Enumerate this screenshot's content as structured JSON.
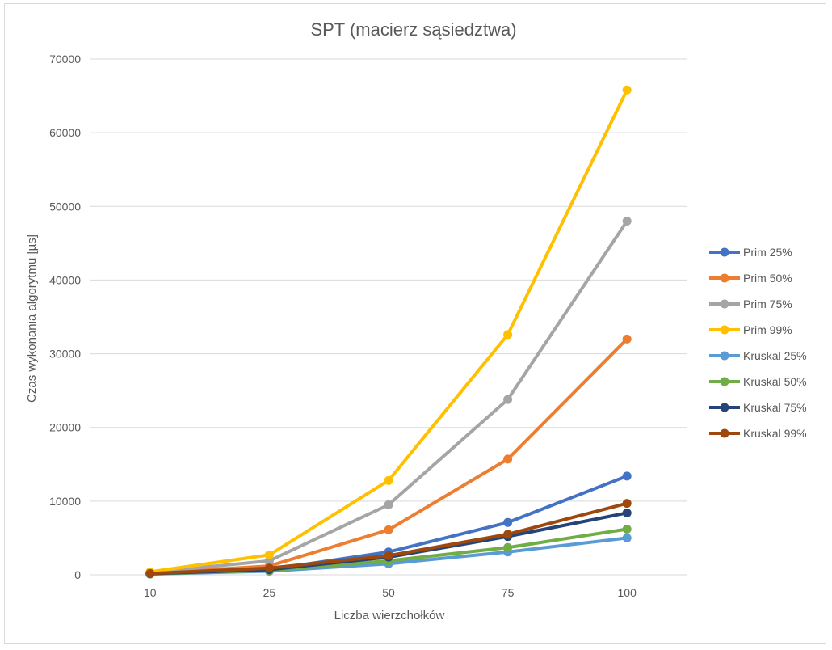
{
  "chart_data": {
    "type": "line",
    "title": "SPT (macierz sąsiedztwa)",
    "xlabel": "Liczba wierzchołków",
    "ylabel": "Czas wykonania algorytmu [µs]",
    "categories": [
      "10",
      "25",
      "50",
      "75",
      "100"
    ],
    "ylim": [
      0,
      70000
    ],
    "yticks": [
      0,
      10000,
      20000,
      30000,
      40000,
      50000,
      60000,
      70000
    ],
    "grid": true,
    "legend_position": "right",
    "series": [
      {
        "name": "Prim 25%",
        "color": "#4472c4",
        "values": [
          150,
          700,
          3100,
          7100,
          13400
        ]
      },
      {
        "name": "Prim 50%",
        "color": "#ed7d31",
        "values": [
          200,
          1200,
          6100,
          15700,
          32000
        ]
      },
      {
        "name": "Prim 75%",
        "color": "#a5a5a5",
        "values": [
          300,
          1900,
          9500,
          23800,
          48000
        ]
      },
      {
        "name": "Prim 99%",
        "color": "#ffc000",
        "values": [
          400,
          2700,
          12800,
          32600,
          65800
        ]
      },
      {
        "name": "Kruskal 25%",
        "color": "#5b9bd5",
        "values": [
          100,
          500,
          1500,
          3100,
          5000
        ]
      },
      {
        "name": "Kruskal 50%",
        "color": "#70ad47",
        "values": [
          120,
          600,
          1900,
          3700,
          6200
        ]
      },
      {
        "name": "Kruskal 75%",
        "color": "#264478",
        "values": [
          150,
          700,
          2400,
          5200,
          8400
        ]
      },
      {
        "name": "Kruskal 99%",
        "color": "#9e480e",
        "values": [
          180,
          900,
          2600,
          5500,
          9700
        ]
      }
    ]
  }
}
